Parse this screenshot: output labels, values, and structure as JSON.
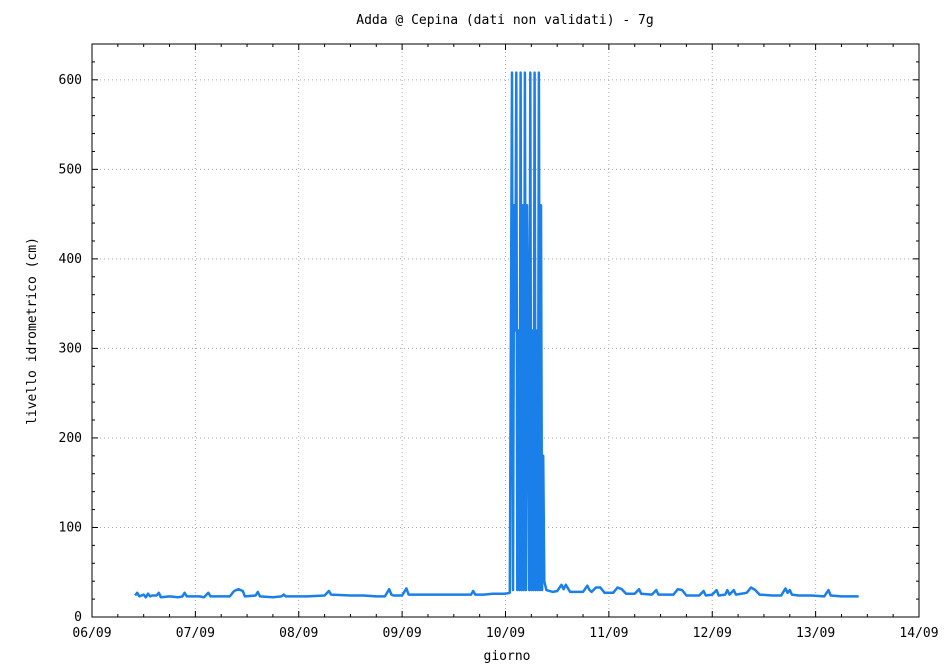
{
  "chart_data": {
    "type": "line",
    "title": "Adda @ Cepina (dati non validati) - 7g",
    "xlabel": "giorno",
    "ylabel": "livello idrometrico (cm)",
    "x_ticks": [
      "06/09",
      "07/09",
      "08/09",
      "09/09",
      "10/09",
      "11/09",
      "12/09",
      "13/09",
      "14/09"
    ],
    "y_ticks": [
      0,
      100,
      200,
      300,
      400,
      500,
      600
    ],
    "xlim": [
      "06/09",
      "14/09"
    ],
    "ylim": [
      0,
      640
    ],
    "grid": true,
    "legend": "none",
    "series": [
      {
        "color": "#1a7fe8",
        "points": [
          [
            "06/09 10:00",
            24
          ],
          [
            "06/09 10:30",
            27
          ],
          [
            "06/09 11:00",
            23
          ],
          [
            "06/09 12:00",
            25
          ],
          [
            "06/09 12:30",
            22
          ],
          [
            "06/09 13:00",
            26
          ],
          [
            "06/09 13:30",
            23
          ],
          [
            "06/09 14:00",
            24
          ],
          [
            "06/09 15:00",
            24
          ],
          [
            "06/09 15:30",
            27
          ],
          [
            "06/09 16:00",
            22
          ],
          [
            "06/09 18:00",
            23
          ],
          [
            "06/09 20:00",
            22
          ],
          [
            "06/09 21:00",
            23
          ],
          [
            "06/09 21:30",
            27
          ],
          [
            "06/09 22:00",
            23
          ],
          [
            "07/09 01:00",
            23
          ],
          [
            "07/09 02:00",
            22
          ],
          [
            "07/09 03:00",
            27
          ],
          [
            "07/09 03:30",
            23
          ],
          [
            "07/09 06:00",
            23
          ],
          [
            "07/09 08:00",
            23
          ],
          [
            "07/09 09:00",
            29
          ],
          [
            "07/09 10:00",
            31
          ],
          [
            "07/09 11:00",
            29
          ],
          [
            "07/09 11:30",
            23
          ],
          [
            "07/09 14:00",
            24
          ],
          [
            "07/09 14:30",
            28
          ],
          [
            "07/09 15:00",
            23
          ],
          [
            "07/09 18:00",
            22
          ],
          [
            "07/09 20:00",
            23
          ],
          [
            "07/09 20:30",
            25
          ],
          [
            "07/09 21:00",
            23
          ],
          [
            "08/09 02:00",
            23
          ],
          [
            "08/09 06:00",
            24
          ],
          [
            "08/09 07:00",
            29
          ],
          [
            "08/09 07:30",
            25
          ],
          [
            "08/09 12:00",
            24
          ],
          [
            "08/09 15:00",
            24
          ],
          [
            "08/09 18:00",
            23
          ],
          [
            "08/09 20:00",
            23
          ],
          [
            "08/09 21:00",
            31
          ],
          [
            "08/09 21:30",
            25
          ],
          [
            "08/09 22:00",
            24
          ],
          [
            "09/09 00:00",
            24
          ],
          [
            "09/09 01:00",
            32
          ],
          [
            "09/09 01:30",
            25
          ],
          [
            "09/09 06:00",
            25
          ],
          [
            "09/09 12:00",
            25
          ],
          [
            "09/09 14:00",
            25
          ],
          [
            "09/09 16:00",
            25
          ],
          [
            "09/09 16:30",
            29
          ],
          [
            "09/09 17:00",
            25
          ],
          [
            "09/09 19:00",
            25
          ],
          [
            "09/09 21:00",
            26
          ],
          [
            "10/09 00:00",
            26
          ],
          [
            "10/09 01:00",
            27
          ],
          [
            "10/09 01:30",
            608
          ],
          [
            "10/09 01:45",
            30
          ],
          [
            "10/09 02:00",
            460
          ],
          [
            "10/09 02:15",
            320
          ],
          [
            "10/09 02:30",
            608
          ],
          [
            "10/09 02:45",
            30
          ],
          [
            "10/09 03:00",
            320
          ],
          [
            "10/09 03:15",
            30
          ],
          [
            "10/09 03:30",
            608
          ],
          [
            "10/09 03:45",
            30
          ],
          [
            "10/09 04:00",
            460
          ],
          [
            "10/09 04:15",
            30
          ],
          [
            "10/09 04:30",
            608
          ],
          [
            "10/09 04:45",
            30
          ],
          [
            "10/09 05:00",
            460
          ],
          [
            "10/09 05:15",
            320
          ],
          [
            "10/09 05:30",
            30
          ],
          [
            "10/09 05:45",
            608
          ],
          [
            "10/09 06:00",
            30
          ],
          [
            "10/09 06:15",
            320
          ],
          [
            "10/09 06:30",
            30
          ],
          [
            "10/09 06:45",
            608
          ],
          [
            "10/09 07:00",
            30
          ],
          [
            "10/09 07:15",
            320
          ],
          [
            "10/09 07:30",
            30
          ],
          [
            "10/09 07:45",
            608
          ],
          [
            "10/09 08:00",
            30
          ],
          [
            "10/09 08:15",
            460
          ],
          [
            "10/09 08:30",
            30
          ],
          [
            "10/09 08:45",
            180
          ],
          [
            "10/09 09:00",
            40
          ],
          [
            "10/09 09:30",
            30
          ],
          [
            "10/09 11:00",
            28
          ],
          [
            "10/09 12:00",
            29
          ],
          [
            "10/09 13:00",
            36
          ],
          [
            "10/09 13:30",
            31
          ],
          [
            "10/09 14:00",
            36
          ],
          [
            "10/09 15:00",
            28
          ],
          [
            "10/09 18:00",
            28
          ],
          [
            "10/09 19:00",
            35
          ],
          [
            "10/09 19:30",
            30
          ],
          [
            "10/09 20:00",
            28
          ],
          [
            "10/09 21:00",
            33
          ],
          [
            "10/09 22:00",
            33
          ],
          [
            "10/09 23:00",
            27
          ],
          [
            "11/09 01:00",
            27
          ],
          [
            "11/09 02:00",
            33
          ],
          [
            "11/09 03:00",
            31
          ],
          [
            "11/09 04:00",
            26
          ],
          [
            "11/09 06:00",
            26
          ],
          [
            "11/09 07:00",
            31
          ],
          [
            "11/09 07:30",
            26
          ],
          [
            "11/09 10:00",
            25
          ],
          [
            "11/09 11:00",
            30
          ],
          [
            "11/09 11:30",
            25
          ],
          [
            "11/09 15:00",
            25
          ],
          [
            "11/09 16:00",
            31
          ],
          [
            "11/09 17:00",
            30
          ],
          [
            "11/09 18:00",
            24
          ],
          [
            "11/09 21:00",
            24
          ],
          [
            "11/09 22:00",
            29
          ],
          [
            "11/09 22:30",
            24
          ],
          [
            "12/09 00:00",
            25
          ],
          [
            "12/09 01:00",
            30
          ],
          [
            "12/09 01:30",
            24
          ],
          [
            "12/09 03:00",
            25
          ],
          [
            "12/09 03:30",
            30
          ],
          [
            "12/09 04:00",
            25
          ],
          [
            "12/09 05:00",
            30
          ],
          [
            "12/09 05:30",
            25
          ],
          [
            "12/09 08:00",
            27
          ],
          [
            "12/09 09:00",
            33
          ],
          [
            "12/09 10:00",
            30
          ],
          [
            "12/09 11:00",
            25
          ],
          [
            "12/09 14:00",
            24
          ],
          [
            "12/09 16:00",
            24
          ],
          [
            "12/09 17:00",
            32
          ],
          [
            "12/09 17:30",
            27
          ],
          [
            "12/09 18:00",
            30
          ],
          [
            "12/09 18:30",
            25
          ],
          [
            "12/09 20:00",
            24
          ],
          [
            "12/09 23:00",
            24
          ],
          [
            "13/09 02:00",
            23
          ],
          [
            "13/09 03:00",
            30
          ],
          [
            "13/09 03:30",
            24
          ],
          [
            "13/09 06:00",
            23
          ],
          [
            "13/09 09:00",
            23
          ],
          [
            "13/09 10:00",
            23
          ]
        ]
      }
    ]
  }
}
